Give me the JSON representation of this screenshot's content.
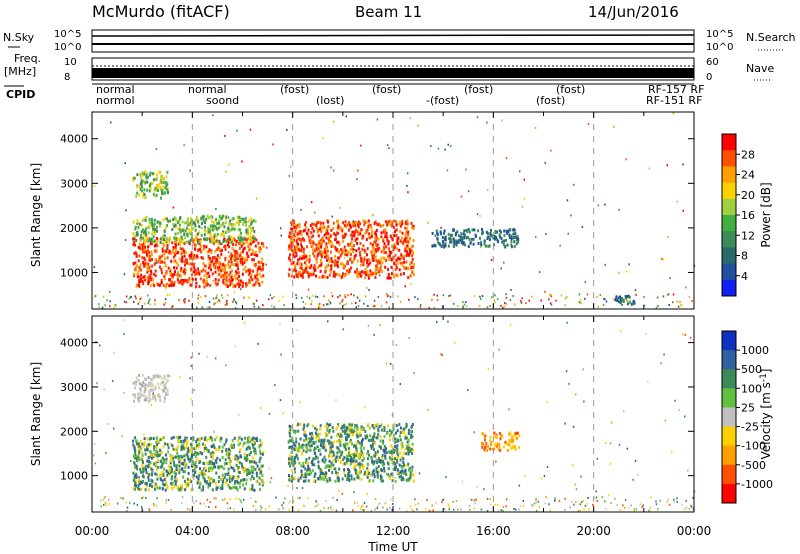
{
  "header": {
    "station": "McMurdo (fitACF)",
    "beam": "Beam 11",
    "date": "14/Jun/2016"
  },
  "top_panels": {
    "nsky_label": "N.Sky",
    "nsky_ticks": [
      "10^5",
      "10^0"
    ],
    "nsearch_label": "N.Search",
    "nsearch_ticks": [
      "10^5",
      "10^0"
    ],
    "freq_label_1": "Freq.",
    "freq_label_2": "[MHz]",
    "freq_ticks": [
      "10",
      "8"
    ],
    "nave_label": "Nave",
    "nave_ticks": [
      "60",
      "0"
    ],
    "cpid_label": "CPID",
    "cpid_row1": [
      "normal",
      "normal",
      "(fost)",
      "(fost)",
      "(fost)",
      "(fost)",
      "RF-157 RF"
    ],
    "cpid_row2": [
      "normol",
      "soond",
      "(lost)",
      "-(fost)",
      "(fost)",
      "RF-151 RF"
    ]
  },
  "chart_data": [
    {
      "type": "heatmap",
      "title": "",
      "xlabel": "",
      "ylabel": "Slant Range [km]",
      "x_range_hours": [
        0,
        24
      ],
      "ylim": [
        180,
        4600
      ],
      "yticks": [
        1000,
        2000,
        3000,
        4000
      ],
      "colorbar": {
        "label": "Power [dB]",
        "ticks": [
          "28",
          "24",
          "20",
          "16",
          "12",
          "8",
          "4"
        ],
        "colors": [
          "#ff0000",
          "#ff5000",
          "#ffa000",
          "#ffd000",
          "#a0d040",
          "#40b040",
          "#3a8a5a",
          "#2a6a6a",
          "#2050a0",
          "#1020f0"
        ]
      },
      "regions": [
        {
          "t0": 1.6,
          "t1": 3.0,
          "r0": 2700,
          "r1": 3300,
          "value": "mid"
        },
        {
          "t0": 1.6,
          "t1": 6.8,
          "r0": 700,
          "r1": 1800,
          "value": "high"
        },
        {
          "t0": 1.6,
          "t1": 6.5,
          "r0": 1700,
          "r1": 2300,
          "value": "mid"
        },
        {
          "t0": 7.8,
          "t1": 12.8,
          "r0": 900,
          "r1": 2200,
          "value": "high"
        },
        {
          "t0": 13.5,
          "t1": 17.0,
          "r0": 1600,
          "r1": 2000,
          "value": "low"
        },
        {
          "t0": 20.8,
          "t1": 21.6,
          "r0": 250,
          "r1": 500,
          "value": "low"
        }
      ]
    },
    {
      "type": "heatmap",
      "title": "",
      "xlabel": "Time UT",
      "ylabel": "Slant Range [km]",
      "x_range_hours": [
        0,
        24
      ],
      "xticks": [
        "00:00",
        "04:00",
        "08:00",
        "12:00",
        "16:00",
        "20:00",
        "00:00"
      ],
      "ylim": [
        180,
        4600
      ],
      "yticks": [
        1000,
        2000,
        3000,
        4000
      ],
      "colorbar": {
        "label": "Velocity [m s^-1]",
        "ticks": [
          "1000",
          "500",
          "100",
          "25",
          "-25",
          "-100",
          "-500",
          "-1000"
        ],
        "colors": [
          "#1030c0",
          "#3060a0",
          "#3a8a5a",
          "#60c040",
          "#c0c0c0",
          "#ffd000",
          "#ffa000",
          "#ff5000",
          "#ff0000"
        ]
      },
      "regions": [
        {
          "t0": 1.6,
          "t1": 3.0,
          "r0": 2700,
          "r1": 3300,
          "value": "grey"
        },
        {
          "t0": 1.6,
          "t1": 6.8,
          "r0": 700,
          "r1": 1900,
          "value": "green"
        },
        {
          "t0": 7.8,
          "t1": 12.8,
          "r0": 900,
          "r1": 2200,
          "value": "green"
        },
        {
          "t0": 15.5,
          "t1": 17.0,
          "r0": 1600,
          "r1": 2000,
          "value": "orange"
        }
      ]
    }
  ]
}
